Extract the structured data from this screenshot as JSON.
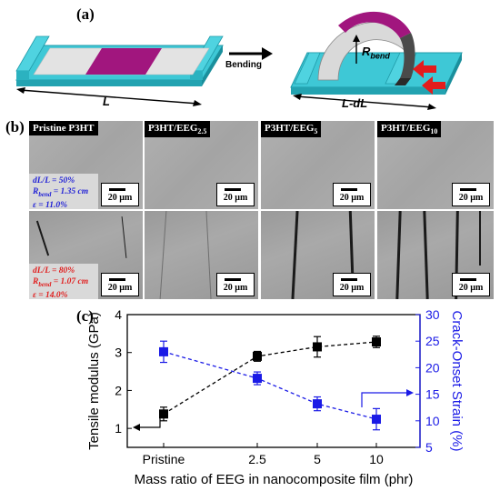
{
  "panel_a": {
    "label": "(a)",
    "length_label": "L",
    "process_label": "Bending",
    "bent_length_label": "L-dL",
    "radius_label_main": "R",
    "radius_label_sub": "bend"
  },
  "panel_b": {
    "label": "(b)",
    "samples": [
      {
        "title_main": "Pristine P3HT",
        "title_sub": ""
      },
      {
        "title_main": "P3HT/EEG",
        "title_sub": "2.5"
      },
      {
        "title_main": "P3HT/EEG",
        "title_sub": "5"
      },
      {
        "title_main": "P3HT/EEG",
        "title_sub": "10"
      }
    ],
    "scale_bar_label": "20 µm",
    "row1_info": {
      "strain": "dL/L = 50%",
      "radius_main": "R",
      "radius_sub": "bend",
      "radius_value": " = 1.35 cm",
      "eps": "ε = 11.0%",
      "color": "#1f1fd6"
    },
    "row2_info": {
      "strain": "dL/L = 80%",
      "radius_main": "R",
      "radius_sub": "bend",
      "radius_value": " = 1.07 cm",
      "eps": "ε = 14.0%",
      "color": "#e01e1e"
    }
  },
  "panel_c": {
    "label": "(c)"
  },
  "chart_data": {
    "type": "scatter",
    "categories": [
      "Pristine",
      "2.5",
      "5",
      "10"
    ],
    "xlabel": "Mass ratio of EEG in nanocomposite film (phr)",
    "ylabel_left": "Tensile modulus (GPa)",
    "ylabel_right": "Crack-Onset Strain (%)",
    "ylim_left": [
      0.5,
      4
    ],
    "ylim_right": [
      5,
      30
    ],
    "yticks_left": [
      "1",
      "2",
      "3",
      "4"
    ],
    "yticks_right": [
      "5",
      "10",
      "15",
      "20",
      "25",
      "30"
    ],
    "series": [
      {
        "values": [
          1.38,
          2.9,
          3.15,
          3.28
        ],
        "errors": [
          0.18,
          0.13,
          0.27,
          0.15
        ],
        "color": "#000000",
        "axis": "left"
      },
      {
        "values": [
          23.0,
          18.0,
          13.2,
          10.3
        ],
        "errors": [
          2.0,
          1.2,
          1.3,
          2.0
        ],
        "color": "#1a1ae6",
        "axis": "right"
      }
    ],
    "grid": false
  }
}
